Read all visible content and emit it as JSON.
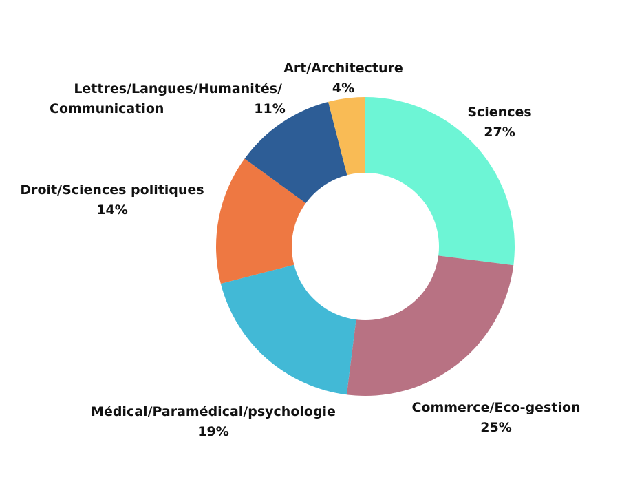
{
  "chart_data": {
    "type": "pie",
    "variant": "donut",
    "title": "",
    "slices": [
      {
        "label_lines": [
          "Sciences"
        ],
        "percent_label": "27%",
        "value": 27,
        "color": "#6DF5D5"
      },
      {
        "label_lines": [
          "Commerce/Eco-gestion"
        ],
        "percent_label": "25%",
        "value": 25,
        "color": "#B87283"
      },
      {
        "label_lines": [
          "Médical/Paramédical/psychologie"
        ],
        "percent_label": "19%",
        "value": 19,
        "color": "#42B9D6"
      },
      {
        "label_lines": [
          "Droit/Sciences politiques"
        ],
        "percent_label": "14%",
        "value": 14,
        "color": "#EE7842"
      },
      {
        "label_lines": [
          "Lettres/Langues/Humanités/",
          "Communication"
        ],
        "percent_label": "11%",
        "value": 11,
        "color": "#2D5D96"
      },
      {
        "label_lines": [
          "Art/Architecture"
        ],
        "percent_label": "4%",
        "value": 4,
        "color": "#F9BB55"
      }
    ]
  }
}
